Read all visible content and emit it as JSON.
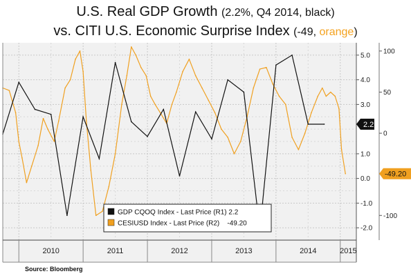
{
  "title": {
    "line1_main": "U.S. Real GDP Growth ",
    "line1_paren": "(2.2%, Q4 2014, black)",
    "line2_main": "vs. CITI U.S. Economic Surprise Index ",
    "line2_paren_open": "(-49, ",
    "line2_orange_word": "orange",
    "line2_paren_close": ")"
  },
  "source": "Source:  Bloomberg",
  "chart_data": {
    "type": "line",
    "grid": true,
    "legend_position": "bottom-center",
    "colors": {
      "gdp": "#111111",
      "cesi": "#f0a020",
      "background": "#f1f1f1"
    },
    "x_axis": {
      "range": [
        2009.75,
        2015.25
      ],
      "ticks": [
        {
          "label": "2010",
          "at": 2010.0
        },
        {
          "label": "2011",
          "at": 2011.0
        },
        {
          "label": "2012",
          "at": 2012.0
        },
        {
          "label": "2013",
          "at": 2013.0
        },
        {
          "label": "2014",
          "at": 2014.0
        },
        {
          "label": "2015",
          "at": 2015.0
        }
      ]
    },
    "y_axis_gdp": {
      "range": [
        -2.5,
        5.5
      ],
      "ticks": [
        {
          "label": "5.0",
          "value": 5.0
        },
        {
          "label": "4.0",
          "value": 4.0
        },
        {
          "label": "3.0",
          "value": 3.0
        },
        {
          "label": "1.0",
          "value": 1.0
        },
        {
          "label": "0.0",
          "value": 0.0
        },
        {
          "label": "-1.0",
          "value": -1.0
        },
        {
          "label": "-2.0",
          "value": -2.0
        }
      ]
    },
    "y_axis_cesi": {
      "range": [
        -130,
        110
      ],
      "ticks": [
        {
          "label": "100",
          "value": 100
        },
        {
          "label": "50",
          "value": 50
        },
        {
          "label": "0",
          "value": 0
        },
        {
          "label": "-100",
          "value": -100
        }
      ]
    },
    "series": [
      {
        "name": "GDP CQOQ Index - Last Price (R1) 2.2",
        "axis": "gdp",
        "x": [
          2009.75,
          2010.0,
          2010.25,
          2010.5,
          2010.75,
          2011.0,
          2011.25,
          2011.5,
          2011.75,
          2012.0,
          2012.25,
          2012.5,
          2012.75,
          2013.0,
          2013.25,
          2013.5,
          2013.75,
          2014.0,
          2014.25,
          2014.5,
          2014.75
        ],
        "y": [
          1.8,
          3.9,
          2.8,
          2.6,
          -1.5,
          2.5,
          0.8,
          4.7,
          2.3,
          1.7,
          2.8,
          0.1,
          2.7,
          1.6,
          4.0,
          3.5,
          -2.1,
          4.6,
          5.0,
          2.2,
          2.2
        ]
      },
      {
        "name": "CESIUSD Index - Last Price (R2)    -49.20",
        "axis": "cesi",
        "x": [
          2009.75,
          2009.85,
          2009.95,
          2010.0,
          2010.05,
          2010.12,
          2010.2,
          2010.3,
          2010.38,
          2010.45,
          2010.55,
          2010.62,
          2010.72,
          2010.8,
          2010.88,
          2010.95,
          2011.0,
          2011.05,
          2011.12,
          2011.2,
          2011.3,
          2011.4,
          2011.5,
          2011.6,
          2011.68,
          2011.75,
          2011.82,
          2011.9,
          2011.98,
          2012.05,
          2012.12,
          2012.2,
          2012.3,
          2012.38,
          2012.45,
          2012.55,
          2012.65,
          2012.75,
          2012.85,
          2012.95,
          2013.05,
          2013.15,
          2013.25,
          2013.35,
          2013.45,
          2013.55,
          2013.65,
          2013.75,
          2013.85,
          2013.95,
          2014.05,
          2014.15,
          2014.25,
          2014.35,
          2014.45,
          2014.55,
          2014.65,
          2014.72,
          2014.78,
          2014.85,
          2014.92,
          2014.98,
          2015.02,
          2015.08
        ],
        "y": [
          55,
          52,
          25,
          -10,
          -30,
          -60,
          -40,
          -15,
          18,
          5,
          -10,
          15,
          55,
          65,
          90,
          100,
          75,
          15,
          -45,
          -100,
          -95,
          -65,
          -25,
          35,
          70,
          105,
          95,
          80,
          70,
          45,
          35,
          25,
          12,
          35,
          50,
          75,
          90,
          70,
          55,
          40,
          25,
          5,
          -5,
          -25,
          -10,
          20,
          55,
          78,
          80,
          60,
          45,
          35,
          -5,
          -20,
          0,
          25,
          45,
          55,
          45,
          50,
          45,
          30,
          -20,
          -49.2
        ]
      }
    ],
    "last_value_labels": [
      {
        "series": "gdp",
        "text": "2.2",
        "value": 2.2
      },
      {
        "series": "cesi",
        "text": "-49.20",
        "value": -49.2
      }
    ]
  }
}
